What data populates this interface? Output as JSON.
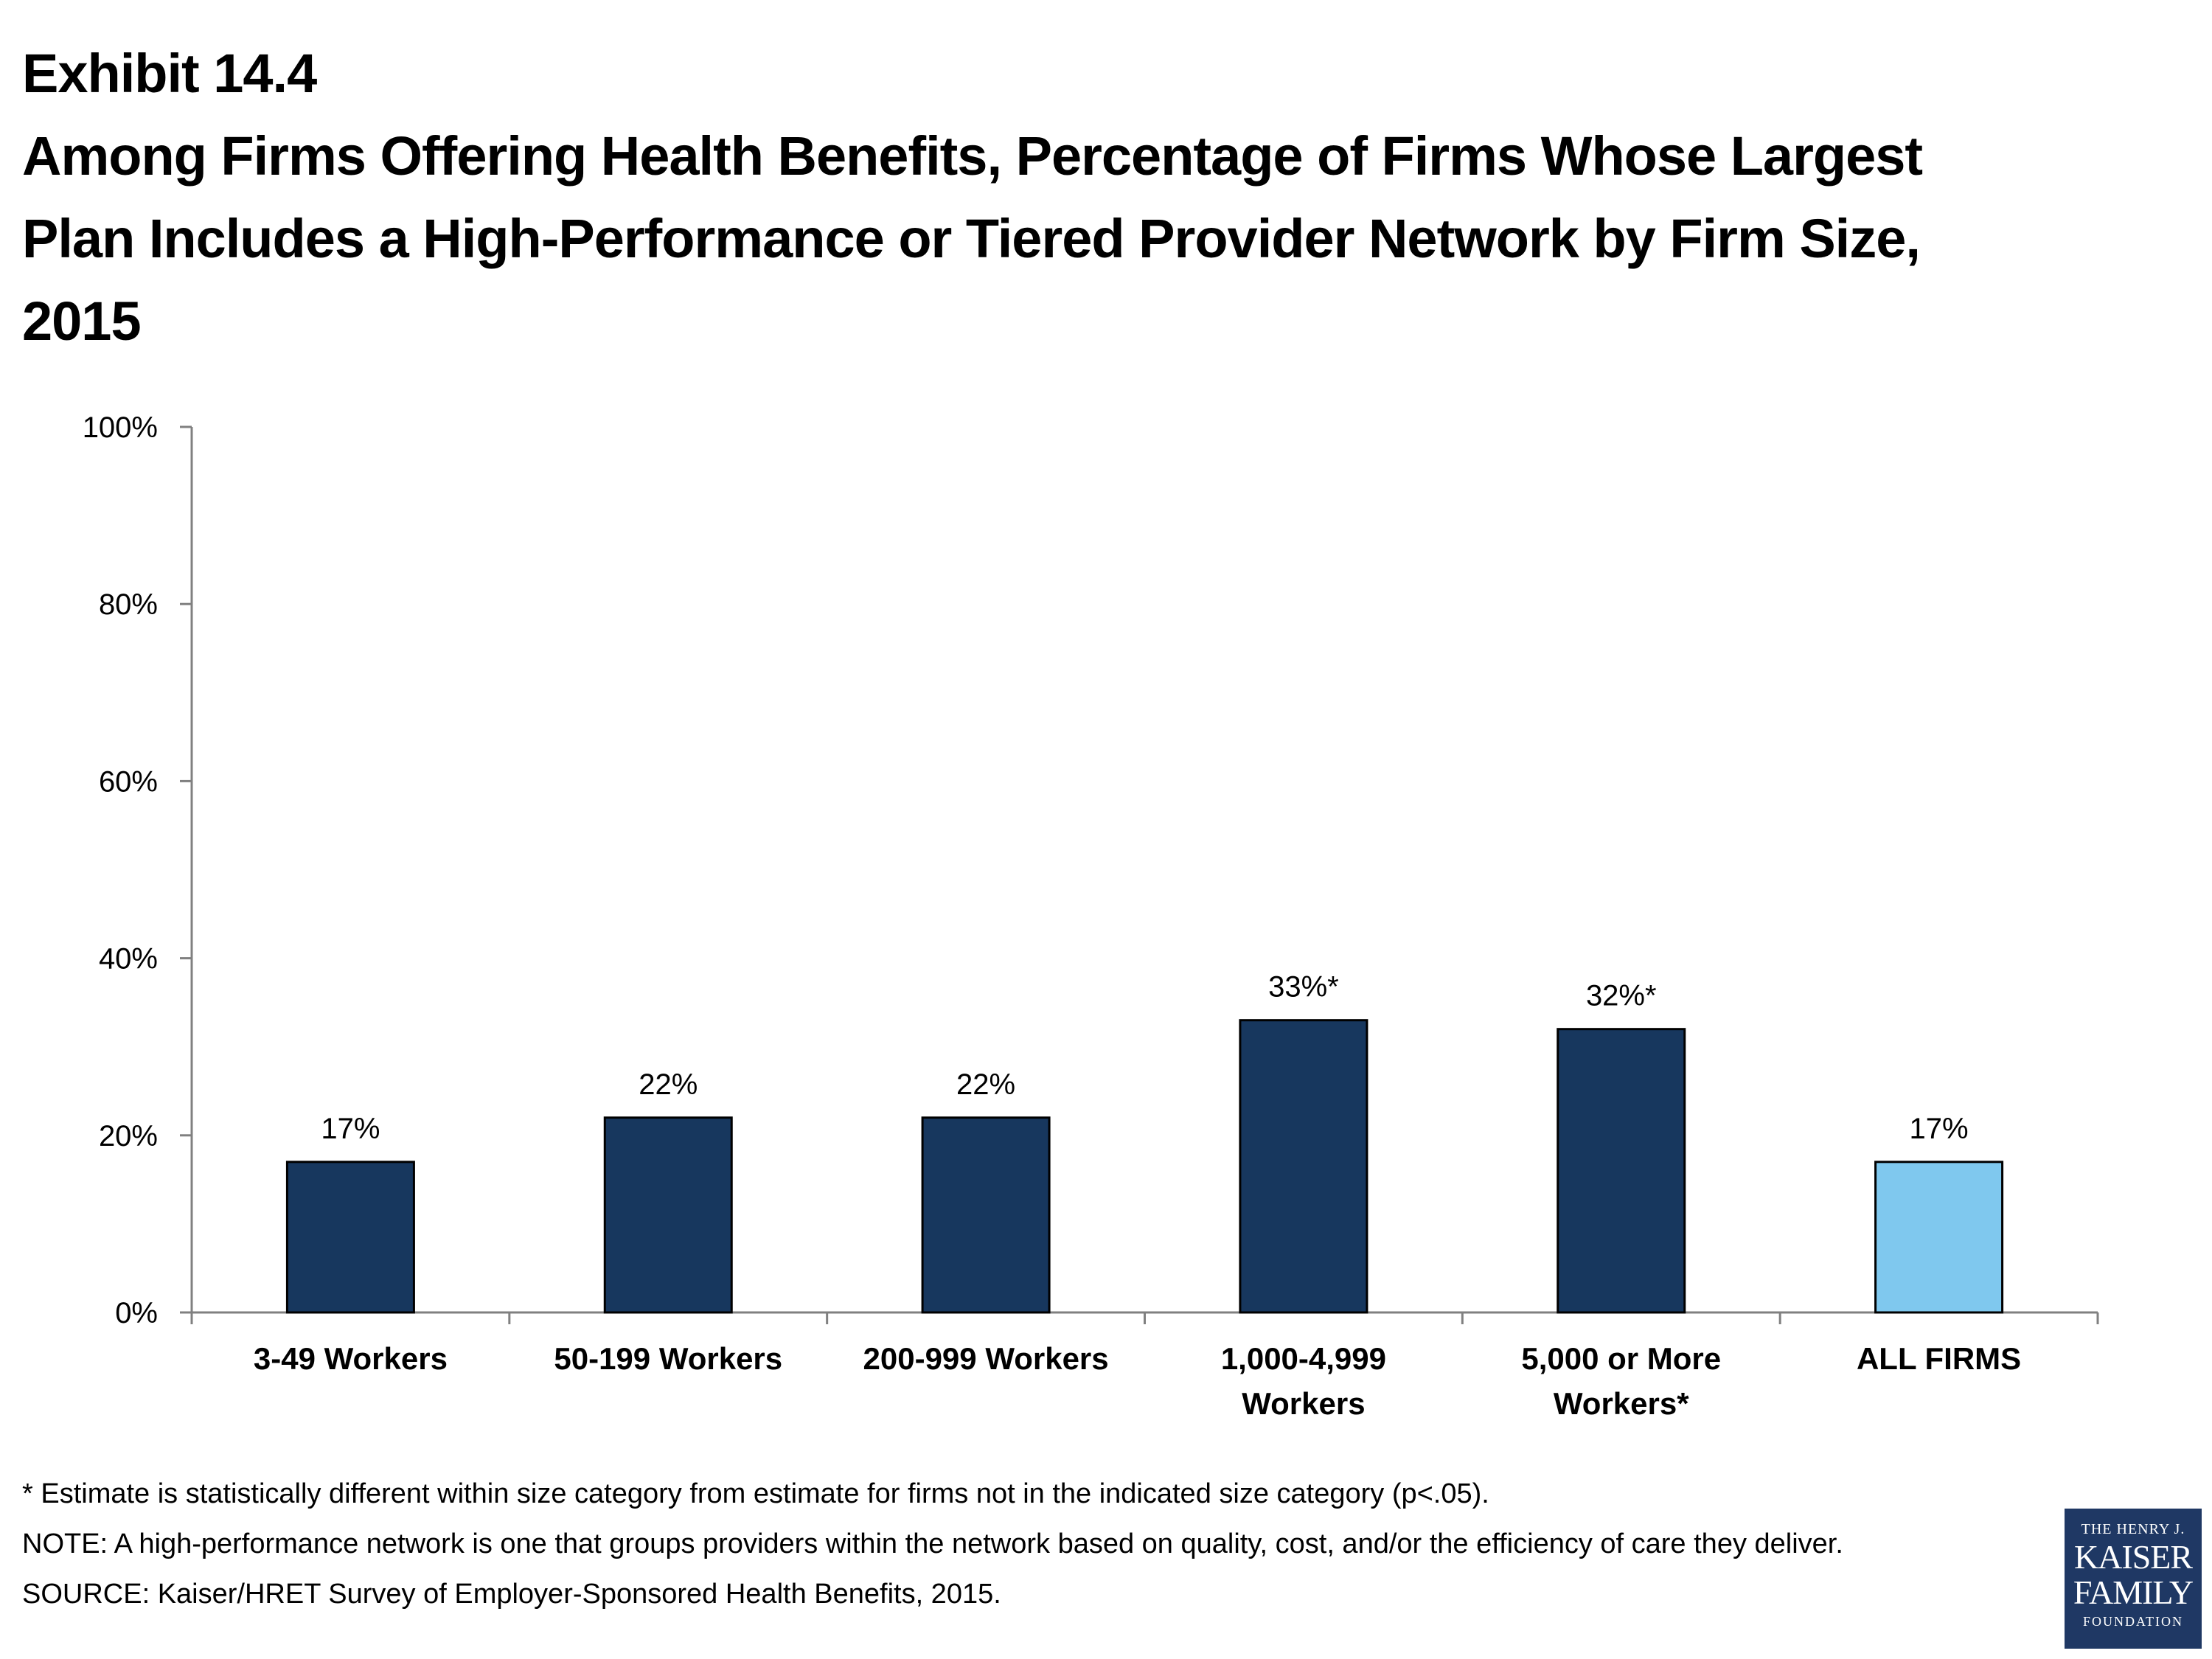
{
  "title": {
    "line1": "Exhibit 14.4",
    "line2": "Among Firms Offering Health Benefits, Percentage of Firms Whose Largest",
    "line3": "Plan Includes a High-Performance or Tiered Provider Network by Firm Size,",
    "line4": "2015"
  },
  "chart_data": {
    "type": "bar",
    "categories": [
      [
        "3-49 Workers"
      ],
      [
        "50-199 Workers"
      ],
      [
        "200-999 Workers"
      ],
      [
        "1,000-4,999",
        "Workers"
      ],
      [
        "5,000 or More",
        "Workers*"
      ],
      [
        "ALL FIRMS"
      ]
    ],
    "values": [
      17,
      22,
      22,
      33,
      32,
      17
    ],
    "data_labels": [
      "17%",
      "22%",
      "22%",
      "33%*",
      "32%*",
      "17%"
    ],
    "bar_colors": [
      "#17375e",
      "#17375e",
      "#17375e",
      "#17375e",
      "#17375e",
      "#7fc8ee"
    ],
    "ylim": [
      0,
      100
    ],
    "yticks": [
      0,
      20,
      40,
      60,
      80,
      100
    ],
    "ytick_labels": [
      "0%",
      "20%",
      "40%",
      "60%",
      "80%",
      "100%"
    ],
    "xlabel": "",
    "ylabel": "",
    "grid": false,
    "legend": "none"
  },
  "footnotes": {
    "asterisk": "* Estimate is statistically different within size category from estimate for firms not in the indicated size category (p<.05).",
    "note": "NOTE: A high-performance network is one that groups providers within the network based on quality, cost, and/or the efficiency of care they deliver.",
    "source": "SOURCE: Kaiser/HRET Survey of Employer-Sponsored Health Benefits, 2015."
  },
  "logo": {
    "line1": "THE HENRY J.",
    "line2": "KAISER",
    "line3": "FAMILY",
    "line4": "FOUNDATION"
  }
}
